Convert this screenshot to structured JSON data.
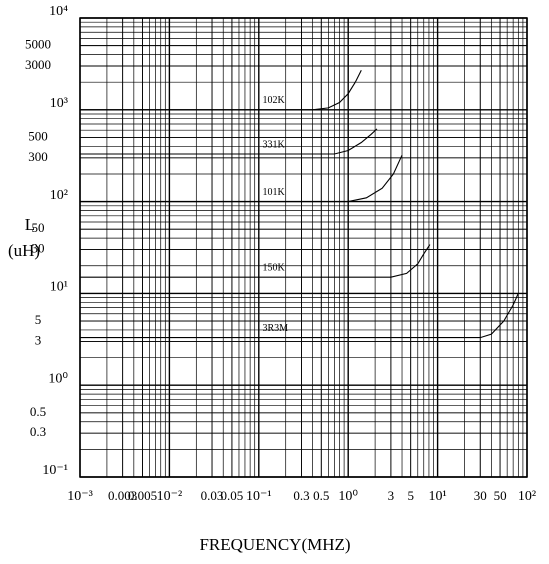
{
  "chart_data": {
    "type": "line",
    "xlabel": "FREQUENCY(MHZ)",
    "ylabel": [
      "L",
      "(uH)"
    ],
    "xlog": true,
    "ylog": true,
    "grid": true,
    "minor_grid": true,
    "xlim": [
      0.001,
      100
    ],
    "ylim": [
      0.1,
      10000
    ],
    "xticks": [
      {
        "value": 0.001,
        "label": "10⁻³"
      },
      0.003,
      0.005,
      {
        "value": 0.01,
        "label": "10⁻²"
      },
      0.03,
      0.05,
      {
        "value": 0.1,
        "label": "10⁻¹"
      },
      0.3,
      0.5,
      {
        "value": 1,
        "label": "10⁰"
      },
      3,
      5,
      {
        "value": 10,
        "label": "10¹"
      },
      30,
      50,
      {
        "value": 100,
        "label": "10²"
      }
    ],
    "yticks": [
      {
        "value": 0.1,
        "label": "10⁻¹"
      },
      3,
      5,
      {
        "value": 1,
        "label": "10⁰"
      },
      30,
      50,
      {
        "value": 10,
        "label": "10¹"
      },
      300,
      500,
      {
        "value": 100,
        "label": "10²"
      },
      3000,
      5000,
      {
        "value": 1000,
        "label": "10³"
      },
      0.3,
      0.5,
      {
        "value": 10000,
        "label": "10⁴"
      }
    ],
    "series": [
      {
        "name": "102K",
        "color": "#000000",
        "x": [
          0.001,
          0.4,
          0.6,
          0.8,
          1.0,
          1.2,
          1.4
        ],
        "values": [
          1000,
          1000,
          1050,
          1200,
          1500,
          2000,
          2700
        ]
      },
      {
        "name": "331K",
        "color": "#000000",
        "x": [
          0.001,
          0.7,
          1.0,
          1.4,
          1.8,
          2.1
        ],
        "values": [
          330,
          330,
          360,
          440,
          540,
          620
        ]
      },
      {
        "name": "101K",
        "color": "#000000",
        "x": [
          0.001,
          1.0,
          1.6,
          2.4,
          3.2,
          4.0
        ],
        "values": [
          100,
          100,
          110,
          140,
          200,
          320
        ]
      },
      {
        "name": "150K",
        "color": "#000000",
        "x": [
          0.001,
          3.0,
          4.5,
          6.0,
          7.0,
          8.2
        ],
        "values": [
          15,
          15,
          16.5,
          21,
          27,
          34
        ]
      },
      {
        "name": "3R3M",
        "color": "#000000",
        "x": [
          0.001,
          30,
          40,
          55,
          70,
          80
        ],
        "values": [
          3.3,
          3.3,
          3.6,
          5,
          7.5,
          10
        ]
      }
    ]
  }
}
